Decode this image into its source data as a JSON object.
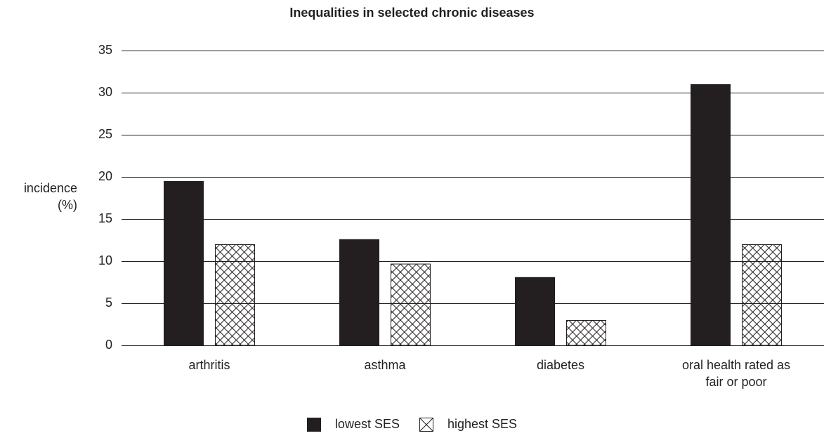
{
  "chart_data": {
    "type": "bar",
    "title": "Inequalities in selected chronic diseases",
    "ylabel": [
      "incidence",
      "(%)"
    ],
    "xlabel": "",
    "ylim": [
      0,
      35
    ],
    "yticks": [
      0,
      5,
      10,
      15,
      20,
      25,
      30,
      35
    ],
    "grid": true,
    "categories": [
      [
        "arthritis"
      ],
      [
        "asthma"
      ],
      [
        "diabetes"
      ],
      [
        "oral health rated as",
        "fair or poor"
      ]
    ],
    "series": [
      {
        "name": "lowest SES",
        "values": [
          19.5,
          12.6,
          8.1,
          31.0
        ],
        "fill": "solid",
        "color": "#231f20"
      },
      {
        "name": "highest SES",
        "values": [
          12.0,
          9.7,
          3.0,
          12.0
        ],
        "fill": "crosshatch",
        "color": "#ffffff"
      }
    ],
    "legend_position": "bottom-center"
  }
}
